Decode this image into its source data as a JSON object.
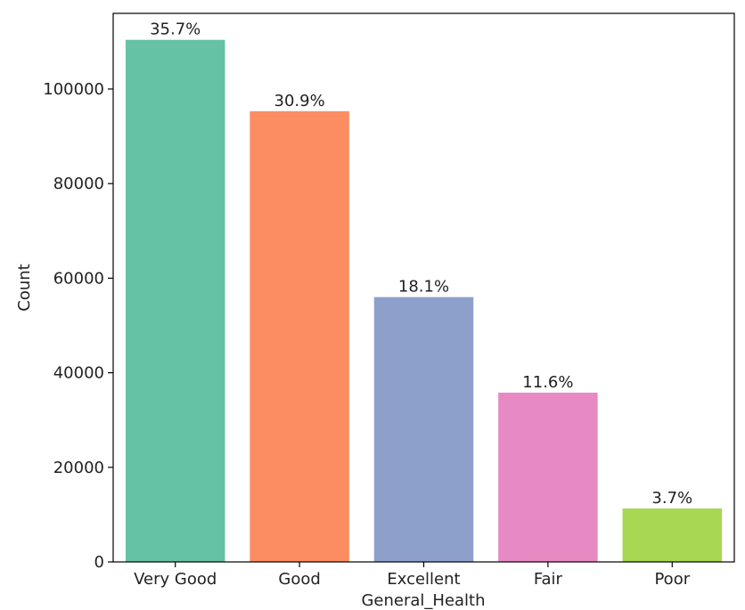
{
  "chart_data": {
    "type": "bar",
    "categories": [
      "Very Good",
      "Good",
      "Excellent",
      "Fair",
      "Poor"
    ],
    "values": [
      110400,
      95300,
      56000,
      35800,
      11300
    ],
    "data_labels": [
      "35.7%",
      "30.9%",
      "18.1%",
      "11.6%",
      "3.7%"
    ],
    "colors": [
      "#66c2a5",
      "#fc8d62",
      "#8da0cb",
      "#e78ac3",
      "#a6d854"
    ],
    "title": "",
    "xlabel": "General_Health",
    "ylabel": "Count",
    "ylim": [
      0,
      116000
    ],
    "yticks": [
      0,
      20000,
      40000,
      60000,
      80000,
      100000
    ],
    "ytick_labels": [
      "0",
      "20000",
      "40000",
      "60000",
      "80000",
      "100000"
    ],
    "grid": false,
    "legend": "none"
  }
}
